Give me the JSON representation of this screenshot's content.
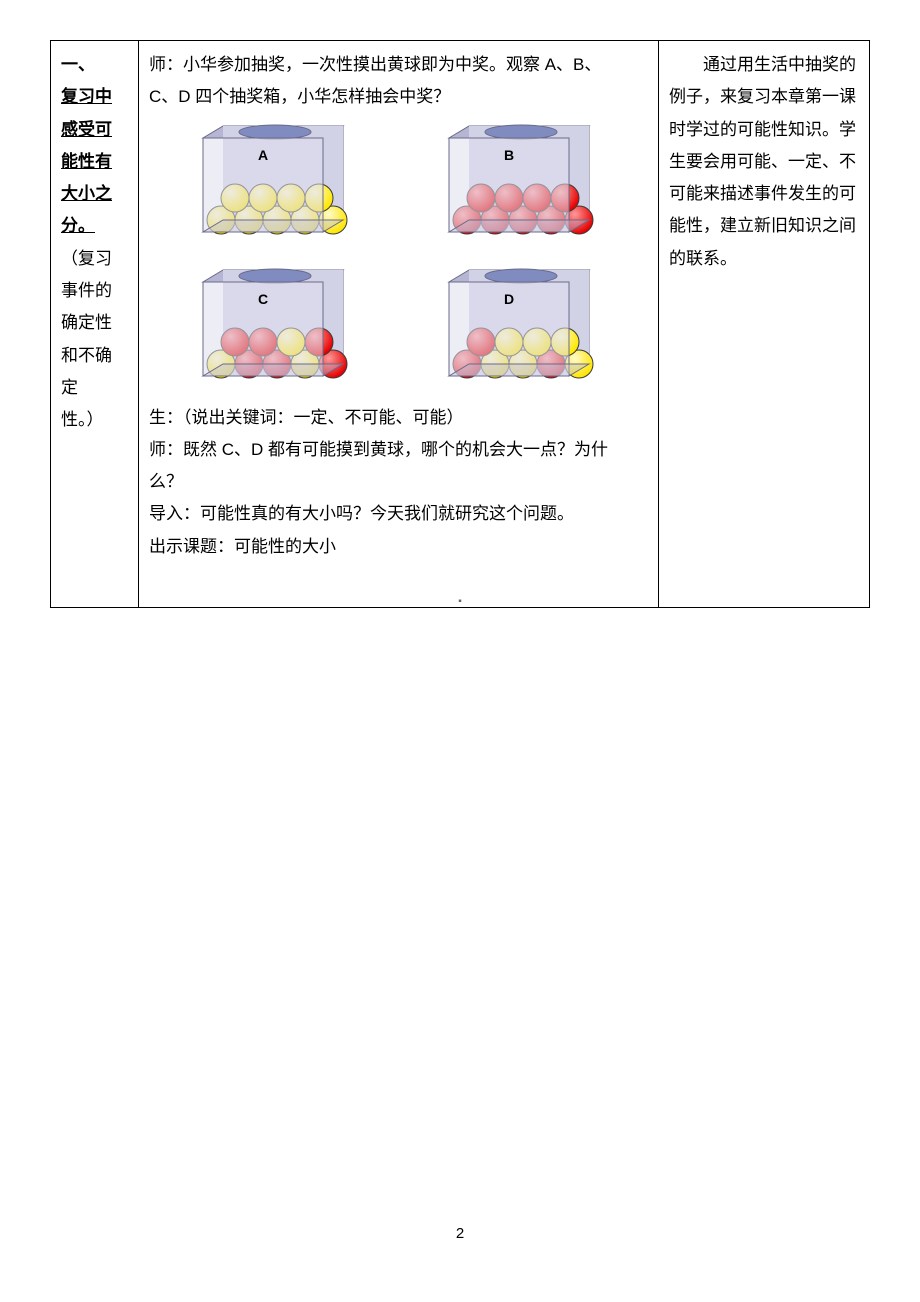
{
  "col1": {
    "section_num": "一、",
    "heading": "复习中感受可能性有大小之分。",
    "sub_open": "（复习事件的确定性和不确定性。）",
    "sub_lines": [
      "（复习",
      "事件的",
      "确定性",
      "和不确",
      "定",
      "性。）"
    ]
  },
  "col2": {
    "teacher_intro_l1": "师：小华参加抽奖，一次性摸出黄球即为中奖。观察 A、B、",
    "teacher_intro_l2": "C、D 四个抽奖箱，小华怎样抽会中奖？",
    "student_line": "生：（说出关键词：一定、不可能、可能）",
    "teacher_q_l1": "师：既然 C、D 都有可能摸到黄球，哪个的机会大一点？为什",
    "teacher_q_l2": "么？",
    "lead_in": "导入：可能性真的有大小吗？今天我们就研究这个问题。",
    "show_topic": "出示课题：可能性的大小"
  },
  "col3": {
    "para": "　　通过用生活中抽奖的例子，来复习本章第一课时学过的可能性知识。学生要会用可能、一定、不可能来描述事件发生的可能性，建立新旧知识之间的联系。"
  },
  "boxes": {
    "type": "infographic",
    "label_fontsize": 14,
    "box_fill": "#c8c8dc",
    "box_stroke": "#6a6a8a",
    "box_front_fill": "#dedeee",
    "lid_fill": "#b6b6d4",
    "hole_fill": "#808cc0",
    "yellow": "#ffe600",
    "red": "#e60000",
    "ball_stroke": "#3a3a3a",
    "ball_radius": 14,
    "items": [
      {
        "label": "A",
        "balls": [
          "y",
          "y",
          "y",
          "y",
          "y",
          "y",
          "y",
          "y",
          "y"
        ]
      },
      {
        "label": "B",
        "balls": [
          "r",
          "r",
          "r",
          "r",
          "r",
          "r",
          "r",
          "r",
          "r"
        ]
      },
      {
        "label": "C",
        "balls": [
          "y",
          "r",
          "r",
          "y",
          "r",
          "r",
          "r",
          "y",
          "r"
        ]
      },
      {
        "label": "D",
        "balls": [
          "r",
          "y",
          "y",
          "r",
          "y",
          "r",
          "y",
          "y",
          "y"
        ]
      }
    ],
    "layout": "grid-2x2"
  },
  "page_number": "2",
  "colors": {
    "text": "#000000",
    "border": "#000000",
    "background": "#ffffff"
  }
}
